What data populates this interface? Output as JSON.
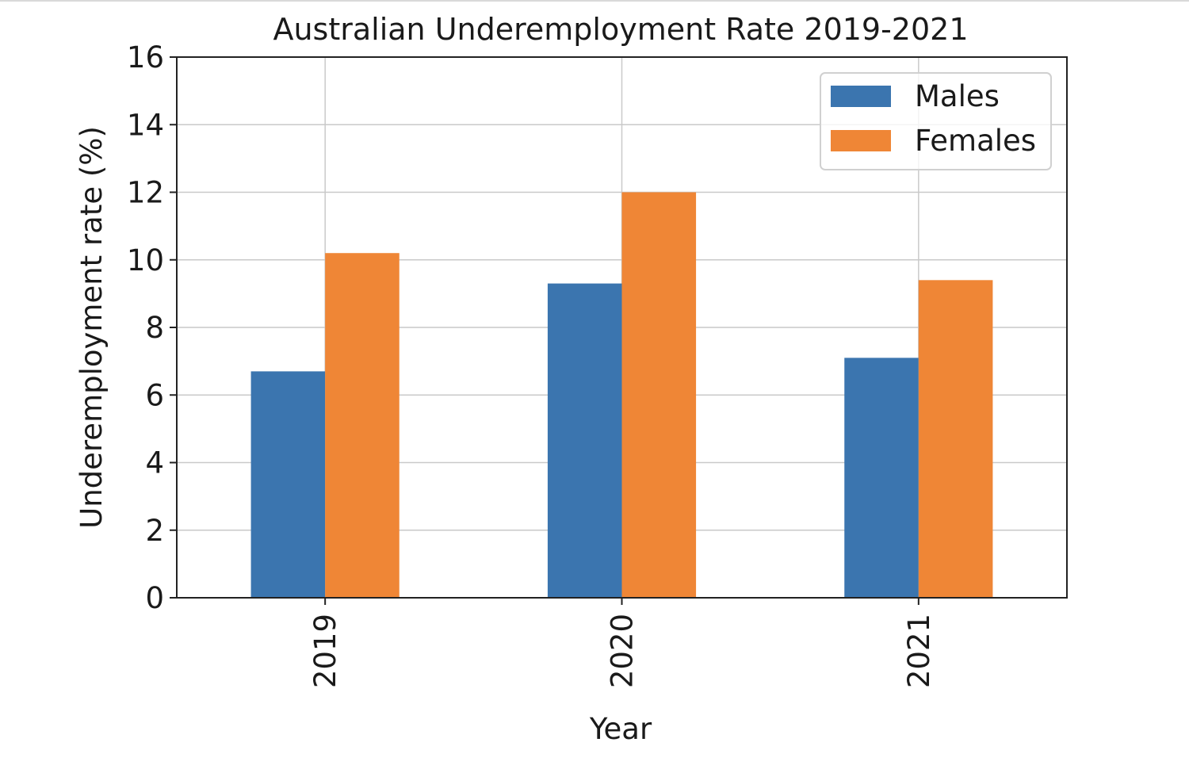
{
  "chart_data": {
    "type": "bar",
    "title": "Australian Underemployment Rate 2019-2021",
    "xlabel": "Year",
    "ylabel": "Underemployment rate (%)",
    "categories": [
      "2019",
      "2020",
      "2021"
    ],
    "series": [
      {
        "name": "Males",
        "values": [
          6.7,
          9.3,
          7.1
        ],
        "color": "#3b75af"
      },
      {
        "name": "Females",
        "values": [
          10.2,
          12.0,
          9.4
        ],
        "color": "#ef8636"
      }
    ],
    "ylim": [
      0,
      16
    ],
    "yticks": [
      0,
      2,
      4,
      6,
      8,
      10,
      12,
      14,
      16
    ],
    "grid": true,
    "legend_position": "top-right"
  }
}
